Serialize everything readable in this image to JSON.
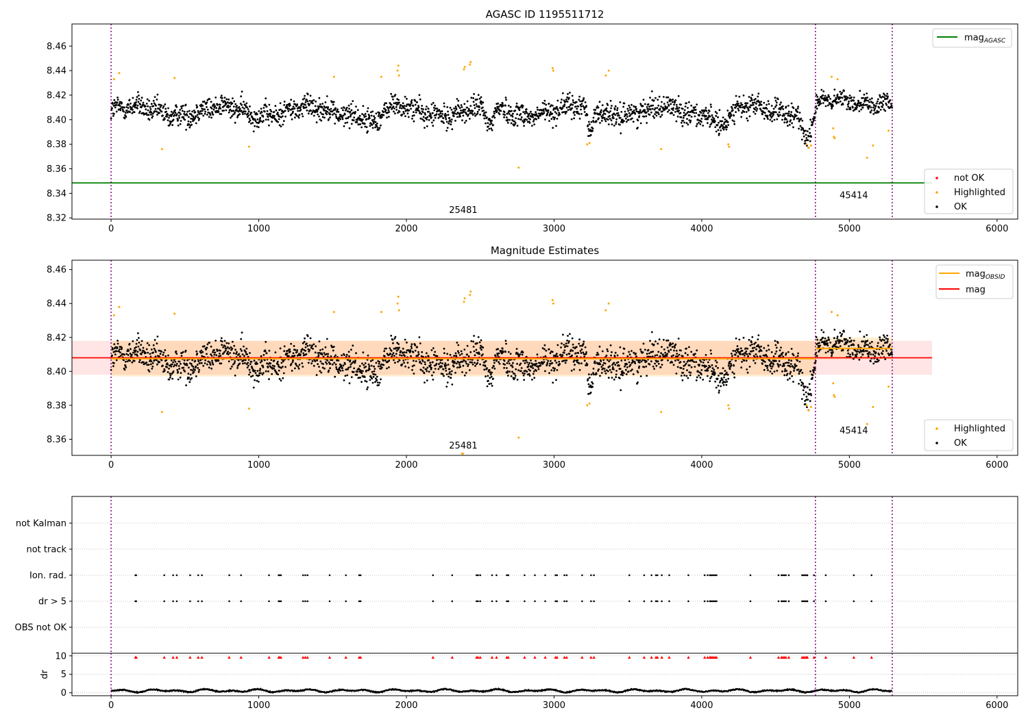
{
  "chart_data": [
    {
      "id": "mag-agasc",
      "type": "scatter",
      "title": "AGASC ID 1195511712",
      "xlim": [
        -265,
        6140
      ],
      "ylim": [
        8.319,
        8.478
      ],
      "xticks": [
        0,
        1000,
        2000,
        3000,
        4000,
        5000,
        6000
      ],
      "yticks": [
        8.32,
        8.34,
        8.36,
        8.38,
        8.4,
        8.42,
        8.44,
        8.46
      ],
      "ytick_decimals": 2,
      "baseline": 8.41,
      "segments": [
        {
          "range": [
            0,
            4770
          ],
          "mean": 8.407,
          "noise": 0.009,
          "wave": 0.004
        },
        {
          "range": [
            4770,
            5290
          ],
          "mean": 8.414,
          "noise": 0.007,
          "wave": 0.002
        }
      ],
      "dips": [
        {
          "x": 1780,
          "depth": -0.009,
          "width": 60
        },
        {
          "x": 2560,
          "depth": -0.013,
          "width": 40
        },
        {
          "x": 3245,
          "depth": -0.02,
          "width": 20
        },
        {
          "x": 4130,
          "depth": -0.01,
          "width": 60
        },
        {
          "x": 4710,
          "depth": -0.018,
          "width": 40
        }
      ],
      "highlighted_points": [
        [
          20,
          8.433
        ],
        [
          55,
          8.438
        ],
        [
          345,
          8.376
        ],
        [
          430,
          8.434
        ],
        [
          935,
          8.378
        ],
        [
          1510,
          8.435
        ],
        [
          1830,
          8.435
        ],
        [
          1940,
          8.44
        ],
        [
          1945,
          8.444
        ],
        [
          1950,
          8.436
        ],
        [
          2390,
          8.441
        ],
        [
          2395,
          8.443
        ],
        [
          2430,
          8.445
        ],
        [
          2435,
          8.447
        ],
        [
          2760,
          8.361
        ],
        [
          2990,
          8.442
        ],
        [
          2995,
          8.44
        ],
        [
          3225,
          8.38
        ],
        [
          3240,
          8.381
        ],
        [
          3350,
          8.436
        ],
        [
          3370,
          8.44
        ],
        [
          3725,
          8.376
        ],
        [
          4180,
          8.38
        ],
        [
          4185,
          8.378
        ],
        [
          4710,
          8.38
        ],
        [
          4725,
          8.377
        ],
        [
          4740,
          8.379
        ],
        [
          4880,
          8.435
        ],
        [
          4890,
          8.393
        ],
        [
          4895,
          8.386
        ],
        [
          4900,
          8.385
        ],
        [
          4920,
          8.433
        ],
        [
          5120,
          8.369
        ],
        [
          5160,
          8.379
        ],
        [
          5265,
          8.391
        ]
      ],
      "obsid_boundaries": [
        0,
        4770,
        5290
      ],
      "obsid_labels": [
        {
          "text": "25481",
          "x": 2385,
          "y": 8.324
        },
        {
          "text": "45414",
          "x": 5030,
          "y": 8.336
        }
      ],
      "mag_agasc": 8.3485,
      "mag_agasc_range": [
        -265,
        5560
      ],
      "legend_top": {
        "entries": [
          {
            "label": "mag",
            "sub": "AGASC",
            "color": "#008000"
          }
        ]
      },
      "legend_bottom": {
        "entries": [
          {
            "label": "not OK",
            "color": "#ff0000"
          },
          {
            "label": "Highlighted",
            "color": "#ffa500"
          },
          {
            "label": "OK",
            "color": "#000000"
          }
        ]
      }
    },
    {
      "id": "mag-estimates",
      "type": "scatter",
      "title": "Magnitude Estimates",
      "xlim": [
        -265,
        6140
      ],
      "ylim": [
        8.3505,
        8.4655
      ],
      "xticks": [
        0,
        1000,
        2000,
        3000,
        4000,
        5000,
        6000
      ],
      "yticks": [
        8.36,
        8.38,
        8.4,
        8.42,
        8.44,
        8.46
      ],
      "ytick_decimals": 2,
      "obsid_labels": [
        {
          "text": "25481",
          "x": 2385,
          "y": 8.3545
        },
        {
          "text": "45414",
          "x": 5030,
          "y": 8.3635
        }
      ],
      "mag": 8.408,
      "mag_band": [
        8.398,
        8.418
      ],
      "mag_range": [
        -265,
        5560
      ],
      "mag_obsid": [
        {
          "range": [
            0,
            4770
          ],
          "value": 8.4075,
          "band": [
            8.397,
            8.418
          ]
        },
        {
          "range": [
            4770,
            5290
          ],
          "value": 8.4135,
          "band": [
            8.407,
            8.42
          ]
        }
      ],
      "low_marker": [
        2380,
        8.352
      ],
      "legend_top": {
        "entries": [
          {
            "label": "mag",
            "sub": "OBSID",
            "color": "#ffa500"
          },
          {
            "label": "mag",
            "color": "#ff0000"
          }
        ]
      },
      "legend_bottom": {
        "entries": [
          {
            "label": "Highlighted",
            "color": "#ffa500"
          },
          {
            "label": "OK",
            "color": "#000000"
          }
        ]
      }
    },
    {
      "id": "flags",
      "type": "scatter",
      "xlim": [
        -265,
        6140
      ],
      "categories": [
        "OBS not OK",
        "dr > 5",
        "Ion. rad.",
        "not track",
        "not Kalman"
      ],
      "flag_times": [
        165,
        170,
        360,
        420,
        445,
        535,
        590,
        615,
        800,
        880,
        1070,
        1135,
        1140,
        1150,
        1300,
        1315,
        1330,
        1480,
        1590,
        1680,
        1690,
        2180,
        2310,
        2475,
        2485,
        2500,
        2580,
        2610,
        2680,
        2690,
        2800,
        2870,
        2940,
        3010,
        3020,
        3070,
        3085,
        3190,
        3250,
        3270,
        3510,
        3610,
        3660,
        3690,
        3700,
        3730,
        3780,
        3910,
        4020,
        4040,
        4055,
        4060,
        4070,
        4080,
        4090,
        4100,
        4330,
        4520,
        4540,
        4550,
        4560,
        4570,
        4590,
        4680,
        4690,
        4700,
        4710,
        4715,
        4760,
        4840,
        5030,
        5150
      ]
    },
    {
      "id": "dr",
      "type": "line",
      "ylabel": "dr",
      "xlim": [
        -265,
        6140
      ],
      "ylim": [
        -0.8,
        10.7
      ],
      "xticks": [
        0,
        1000,
        2000,
        3000,
        4000,
        5000,
        6000
      ],
      "yticks": [
        0,
        5,
        10
      ],
      "ytick_decimals": 0,
      "dr_high_marker": 9.6,
      "range": [
        0,
        5290
      ],
      "level": 0.55,
      "amplitude": 0.45
    }
  ]
}
